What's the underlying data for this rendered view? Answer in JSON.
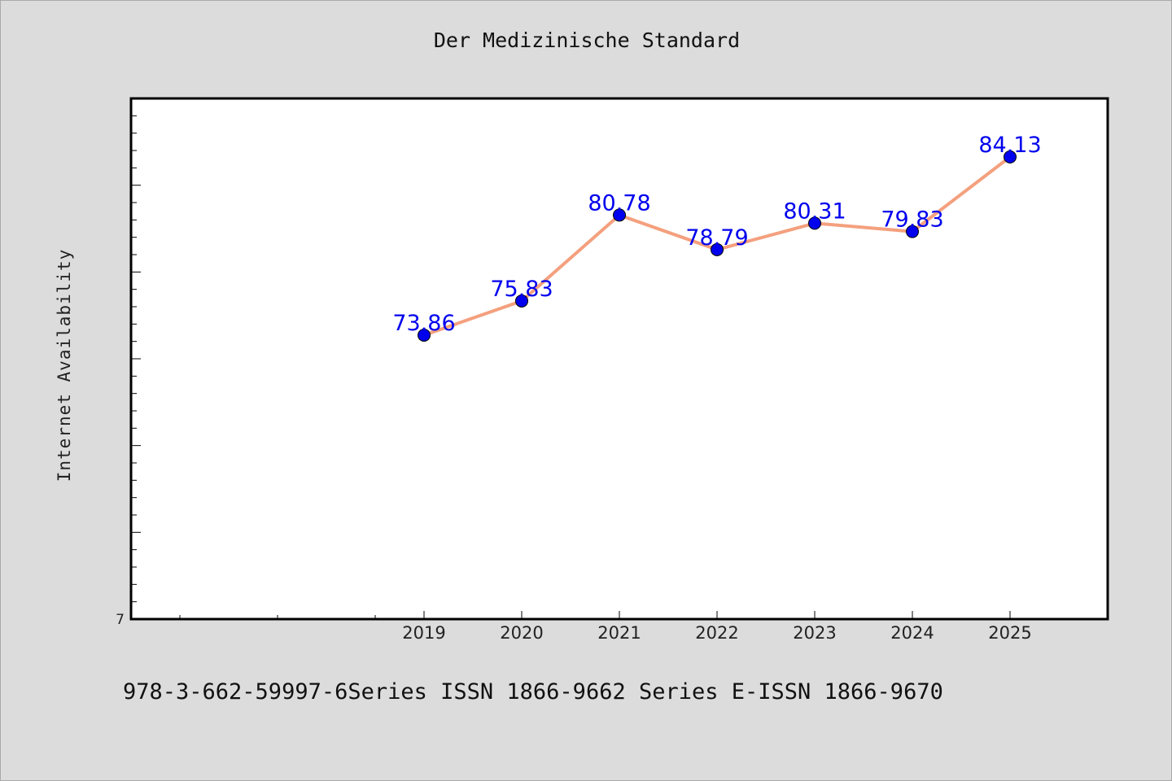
{
  "chart_data": {
    "type": "line",
    "title": "Der Medizinische Standard",
    "ylabel": "Internet Availability",
    "xlabel": "",
    "categories": [
      "2019",
      "2020",
      "2021",
      "2022",
      "2023",
      "2024",
      "2025"
    ],
    "series": [
      {
        "values": [
          73.86,
          75.83,
          80.78,
          78.79,
          80.31,
          79.83,
          84.13
        ],
        "labels": [
          "73.86",
          "75.83",
          "80.78",
          "78.79",
          "80.31",
          "79.83",
          "84.13"
        ]
      }
    ],
    "y_tick_labels": [
      "7"
    ],
    "ylim": [
      57.5,
      87.5
    ],
    "xlim": [
      2016,
      2026
    ],
    "grid": false,
    "line_color": "#f4a07e",
    "marker_color": "#0000ee",
    "label_color": "#0000ee"
  },
  "footer": {
    "text": "978-3-662-59997-6Series ISSN 1866-9662 Series E-ISSN 1866-9670"
  }
}
